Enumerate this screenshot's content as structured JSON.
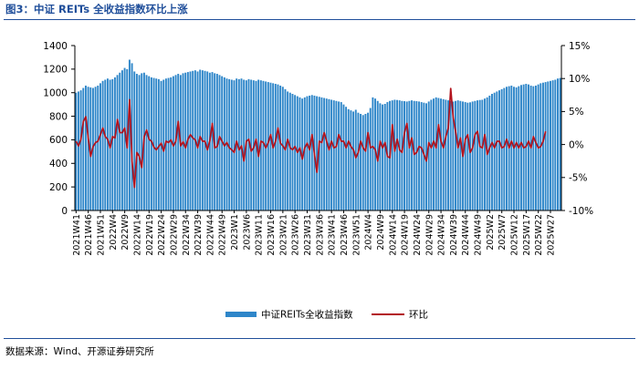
{
  "figure_title": "图3：中证 REITs 全收益指数环比上涨",
  "source_note": "数据来源：Wind、开源证券研究所",
  "colors": {
    "bar": "#2e86c9",
    "line": "#b3121c",
    "title": "#1f4e9a"
  },
  "chart_data": {
    "type": "bar+line",
    "title": "图3：中证 REITs 全收益指数环比上涨",
    "left_axis": {
      "min": 0,
      "max": 1400,
      "ticks": [
        "0",
        "200",
        "400",
        "600",
        "800",
        "1000",
        "1200",
        "1400"
      ]
    },
    "right_axis": {
      "min": -10,
      "max": 15,
      "unit": "%",
      "ticks": [
        "-10%",
        "-5%",
        "0%",
        "5%",
        "10%",
        "15%"
      ]
    },
    "x_tick_labels": [
      "2021W41",
      "2021W46",
      "2021W51",
      "2022W4",
      "2022W9",
      "2022W14",
      "2022W19",
      "2022W24",
      "2022W29",
      "2022W34",
      "2022W39",
      "2022W44",
      "2022W49",
      "2023W1",
      "2023W6",
      "2023W11",
      "2023W16",
      "2023W21",
      "2023W26",
      "2023W31",
      "2023W36",
      "2023W41",
      "2023W46",
      "2023W51",
      "2024W4",
      "2024W9",
      "2024W14",
      "2024W19",
      "2024W24",
      "2024W29",
      "2024W34",
      "2024W39",
      "2024W44",
      "2024W49",
      "2025W2",
      "2025W7",
      "2025W12",
      "2025W17",
      "2025W22",
      "2025W27"
    ],
    "legend": {
      "position": "bottom",
      "entries": [
        "中证REITs全收益指数",
        "环比"
      ]
    },
    "series": [
      {
        "name": "中证REITs全收益指数",
        "kind": "bar",
        "values": [
          1000,
          1010,
          1020,
          1040,
          1060,
          1050,
          1045,
          1040,
          1050,
          1060,
          1080,
          1100,
          1110,
          1120,
          1110,
          1115,
          1130,
          1150,
          1170,
          1190,
          1210,
          1200,
          1280,
          1250,
          1180,
          1160,
          1150,
          1165,
          1170,
          1150,
          1140,
          1130,
          1125,
          1120,
          1115,
          1100,
          1110,
          1120,
          1125,
          1130,
          1140,
          1150,
          1160,
          1150,
          1165,
          1170,
          1175,
          1180,
          1185,
          1190,
          1180,
          1195,
          1190,
          1185,
          1180,
          1170,
          1175,
          1165,
          1160,
          1150,
          1140,
          1130,
          1120,
          1115,
          1110,
          1105,
          1120,
          1115,
          1120,
          1110,
          1105,
          1115,
          1110,
          1105,
          1100,
          1110,
          1105,
          1100,
          1095,
          1090,
          1085,
          1080,
          1075,
          1070,
          1060,
          1050,
          1030,
          1010,
          1000,
          990,
          980,
          970,
          960,
          950,
          960,
          970,
          975,
          980,
          975,
          970,
          965,
          960,
          955,
          950,
          945,
          940,
          935,
          930,
          925,
          920,
          900,
          880,
          860,
          850,
          840,
          855,
          830,
          820,
          810,
          820,
          830,
          870,
          960,
          950,
          930,
          910,
          900,
          905,
          920,
          930,
          935,
          940,
          938,
          935,
          930,
          928,
          925,
          930,
          935,
          930,
          928,
          925,
          920,
          915,
          910,
          925,
          940,
          950,
          960,
          955,
          950,
          945,
          940,
          935,
          930,
          925,
          930,
          935,
          930,
          925,
          920,
          915,
          918,
          925,
          930,
          935,
          938,
          940,
          950,
          960,
          975,
          990,
          1000,
          1010,
          1020,
          1030,
          1040,
          1050,
          1055,
          1060,
          1050,
          1045,
          1055,
          1065,
          1070,
          1075,
          1070,
          1060,
          1055,
          1060,
          1070,
          1080,
          1085,
          1090,
          1095,
          1100,
          1105,
          1110,
          1120,
          1125
        ]
      },
      {
        "name": "环比",
        "kind": "line",
        "values": [
          0.5,
          -0.2,
          0.8,
          3.5,
          4.2,
          1.0,
          -1.8,
          -0.3,
          0.3,
          0.5,
          1.5,
          2.5,
          1.2,
          0.8,
          -0.5,
          1.2,
          1.0,
          3.8,
          1.8,
          1.8,
          2.5,
          -0.5,
          6.8,
          -2.5,
          -6.5,
          -1.2,
          -1.8,
          -3.5,
          1.2,
          2.2,
          0.8,
          0.5,
          -0.4,
          -0.8,
          -0.3,
          0.2,
          -1.0,
          0.5,
          0.3,
          0.7,
          -0.2,
          0.5,
          3.5,
          -0.2,
          0.4,
          -0.5,
          0.8,
          1.5,
          1.0,
          0.7,
          -0.5,
          1.2,
          0.5,
          0.5,
          -0.8,
          0.6,
          3.2,
          -0.5,
          -0.3,
          1.2,
          0.5,
          -0.2,
          0.3,
          -0.5,
          -0.8,
          -1.2,
          0.5,
          -0.8,
          -0.2,
          -2.5,
          0.5,
          0.8,
          -1.0,
          -0.5,
          0.8,
          -1.8,
          0.5,
          0.3,
          -0.5,
          0.3,
          1.5,
          -0.5,
          0.5,
          2.5,
          0.2,
          -0.2,
          -0.8,
          0.8,
          -0.5,
          -0.8,
          -0.3,
          -1.2,
          -0.5,
          -2.2,
          -0.5,
          0.2,
          -0.8,
          1.5,
          -1.5,
          -4.2,
          0.5,
          0.3,
          1.8,
          0.5,
          -0.8,
          0.5,
          -0.5,
          -0.3,
          1.5,
          0.5,
          0.5,
          -0.5,
          0.5,
          -0.3,
          -0.8,
          -2.0,
          -1.2,
          0.5,
          -0.5,
          -1.0,
          1.8,
          -0.5,
          -0.3,
          -0.8,
          -2.5,
          0.5,
          -0.5,
          0.3,
          -1.8,
          -2.0,
          3.0,
          -1.0,
          0.8,
          -0.8,
          -1.2,
          1.8,
          3.2,
          -0.5,
          1.0,
          -1.5,
          -1.2,
          -0.3,
          -0.5,
          -1.5,
          -2.5,
          0.3,
          -0.5,
          0.5,
          -0.5,
          3.0,
          0.5,
          -0.5,
          1.2,
          2.5,
          8.5,
          4.2,
          2.0,
          -0.5,
          1.0,
          -1.8,
          0.8,
          1.5,
          -1.2,
          -0.5,
          1.5,
          2.0,
          -0.3,
          -0.5,
          1.5,
          -1.5,
          -0.5,
          0.3,
          -0.5,
          0.5,
          0.5,
          -0.5,
          -0.3,
          0.8,
          -0.5,
          0.5,
          -0.5,
          0.3,
          -0.5,
          0.3,
          -0.5,
          -0.3,
          0.5,
          -0.5,
          1.2,
          0.3,
          -0.5,
          -0.3,
          0.5,
          2.0
        ]
      }
    ]
  }
}
